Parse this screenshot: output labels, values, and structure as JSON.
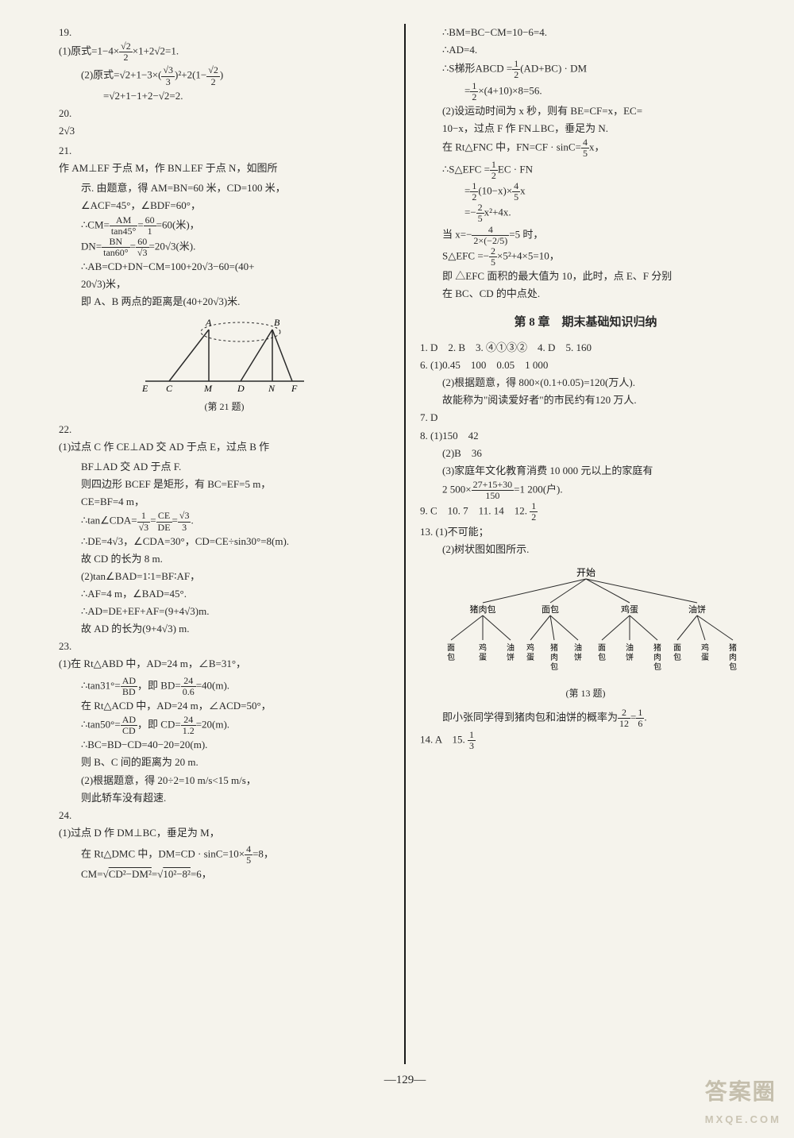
{
  "left_col": {
    "q19": {
      "num": "19.",
      "p1_a": "(1)原式=1−4×",
      "p1_frac_n": "√2",
      "p1_frac_d": "2",
      "p1_b": "×1+2√2=1.",
      "p2_a": "(2)原式=√2+1−3×(",
      "p2_frac_n": "√3",
      "p2_frac_d": "3",
      "p2_b": ")²+2(1−",
      "p2_frac2_n": "√2",
      "p2_frac2_d": "2",
      "p2_c": ")",
      "p3": "=√2+1−1+2−√2=2."
    },
    "q20": {
      "num": "20.",
      "ans": "2√3"
    },
    "q21": {
      "num": "21.",
      "l1": "作 AM⊥EF 于点 M，作 BN⊥EF 于点 N，如图所",
      "l2": "示. 由题意，得 AM=BN=60 米，CD=100 米，",
      "l3": "∠ACF=45°，∠BDF=60°，",
      "l4a": "∴CM=",
      "l4_n": "AM",
      "l4_d": "tan45°",
      "l4b": "=",
      "l4_n2": "60",
      "l4_d2": "1",
      "l4c": "=60(米)，",
      "l5a": "DN=",
      "l5_n": "BN",
      "l5_d": "tan60°",
      "l5b": "=",
      "l5_n2": "60",
      "l5_d2": "√3",
      "l5c": "=20√3(米).",
      "l6": "∴AB=CD+DN−CM=100+20√3−60=(40+",
      "l7": "20√3)米，",
      "l8": "即 A、B 两点的距离是(40+20√3)米.",
      "fig_caption": "(第 21 题)",
      "labels": {
        "A": "A",
        "B": "B",
        "E": "E",
        "C": "C",
        "M": "M",
        "D": "D",
        "N": "N",
        "F": "F"
      }
    },
    "q22": {
      "num": "22.",
      "l1": "(1)过点 C 作 CE⊥AD 交 AD 于点 E，过点 B 作",
      "l2": "BF⊥AD 交 AD 于点 F.",
      "l3": "则四边形 BCEF 是矩形，有 BC=EF=5 m，",
      "l4": "CE=BF=4 m，",
      "l5a": "∴tan∠CDA=",
      "l5_n": "1",
      "l5_d": "√3",
      "l5b": "=",
      "l5_n2": "CE",
      "l5_d2": "DE",
      "l5c": "=",
      "l5_n3": "√3",
      "l5_d3": "3",
      "l5d": ".",
      "l6": "∴DE=4√3，∠CDA=30°，CD=CE÷sin30°=8(m).",
      "l7": "故 CD 的长为 8 m.",
      "l8": "(2)tan∠BAD=1∶1=BF∶AF，",
      "l9": "∴AF=4 m，∠BAD=45°.",
      "l10": "∴AD=DE+EF+AF=(9+4√3)m.",
      "l11": "故 AD 的长为(9+4√3) m."
    },
    "q23": {
      "num": "23.",
      "l1": "(1)在 Rt△ABD 中，AD=24 m，∠B=31°，",
      "l2a": "∴tan31°=",
      "l2_n": "AD",
      "l2_d": "BD",
      "l2b": "，即 BD=",
      "l2_n2": "24",
      "l2_d2": "0.6",
      "l2c": "=40(m).",
      "l3": "在 Rt△ACD 中，AD=24 m，∠ACD=50°，",
      "l4a": "∴tan50°=",
      "l4_n": "AD",
      "l4_d": "CD",
      "l4b": "，即 CD=",
      "l4_n2": "24",
      "l4_d2": "1.2",
      "l4c": "=20(m).",
      "l5": "∴BC=BD−CD=40−20=20(m).",
      "l6": "则 B、C 间的距离为 20 m.",
      "l7": "(2)根据题意，得 20÷2=10 m/s<15 m/s，",
      "l8": "则此轿车没有超速."
    },
    "q24": {
      "num": "24.",
      "l1": "(1)过点 D 作 DM⊥BC，垂足为 M，",
      "l2a": "在 Rt△DMC 中，DM=CD · sinC=10×",
      "l2_n": "4",
      "l2_d": "5",
      "l2b": "=8，",
      "l3a": "CM=√",
      "l3_rad": "CD²−DM²",
      "l3b": "=√",
      "l3_rad2": "10²−8²",
      "l3c": "=6，"
    }
  },
  "right_col": {
    "cont24": {
      "l1": "∴BM=BC−CM=10−6=4.",
      "l2": "∴AD=4.",
      "l3a": "∴S梯形ABCD =",
      "l3_n": "1",
      "l3_d": "2",
      "l3b": "(AD+BC) · DM",
      "l4a": "=",
      "l4_n": "1",
      "l4_d": "2",
      "l4b": "×(4+10)×8=56.",
      "l5": "(2)设运动时间为 x 秒，则有 BE=CF=x，EC=",
      "l6": "10−x，过点 F 作 FN⊥BC，垂足为 N.",
      "l7a": "在 Rt△FNC 中，FN=CF · sinC=",
      "l7_n": "4",
      "l7_d": "5",
      "l7b": "x，",
      "l8a": "∴S△EFC =",
      "l8_n": "1",
      "l8_d": "2",
      "l8b": "EC · FN",
      "l9a": "=",
      "l9_n": "1",
      "l9_d": "2",
      "l9b": "(10−x)×",
      "l9_n2": "4",
      "l9_d2": "5",
      "l9c": "x",
      "l10a": "=−",
      "l10_n": "2",
      "l10_d": "5",
      "l10b": "x²+4x.",
      "l11a": "当 x=−",
      "l11_n": "4",
      "l11_d": "2×(−2/5)",
      "l11b": "=5 时，",
      "l12a": "S△EFC =−",
      "l12_n": "2",
      "l12_d": "5",
      "l12b": "×5²+4×5=10，",
      "l13": "即 △EFC 面积的最大值为 10，此时，点 E、F 分别",
      "l14": "在 BC、CD 的中点处."
    },
    "section": "第 8 章　期末基础知识归纳",
    "a1": "1. D　2. B　3. ④①③②　4. D　5. 160",
    "a6": {
      "l1": "6. (1)0.45　100　0.05　1 000",
      "l2": "(2)根据题意，得 800×(0.1+0.05)=120(万人).",
      "l3": "故能称为\"阅读爱好者\"的市民约有120 万人."
    },
    "a7": "7. D",
    "a8": {
      "l1": "8. (1)150　42",
      "l2": "(2)B　36",
      "l3": "(3)家庭年文化教育消费 10 000 元以上的家庭有",
      "l4a": "2 500×",
      "l4_n": "27+15+30",
      "l4_d": "150",
      "l4b": "=1 200(户)."
    },
    "a9a": "9. C　10. 7　11. 14　12. ",
    "a9_n": "1",
    "a9_d": "2",
    "a13": {
      "l1": "13. (1)不可能；",
      "l2": "(2)树状图如图所示.",
      "caption": "(第 13 题)",
      "root": "开始",
      "level1": [
        "猪肉包",
        "面包",
        "鸡蛋",
        "油饼"
      ],
      "leaves": [
        [
          "面包",
          "鸡蛋",
          "油饼"
        ],
        [
          "鸡蛋",
          "猪肉包",
          "油饼"
        ],
        [
          "面包",
          "油饼",
          "猪肉包"
        ],
        [
          "面包",
          "鸡蛋",
          "猪肉包"
        ]
      ],
      "l3a": "即小张同学得到猪肉包和油饼的概率为",
      "l3_n": "2",
      "l3_d": "12",
      "l3b": "=",
      "l3_n2": "1",
      "l3_d2": "6",
      "l3c": "."
    },
    "a14a": "14. A　15. ",
    "a14_n": "1",
    "a14_d": "3"
  },
  "pagenum": "—129—",
  "watermark": {
    "title": "答案圈",
    "url": "MXQE.COM"
  },
  "colors": {
    "text": "#2a2a2a",
    "bg": "#f5f3ec",
    "line": "#1a1a1a"
  }
}
